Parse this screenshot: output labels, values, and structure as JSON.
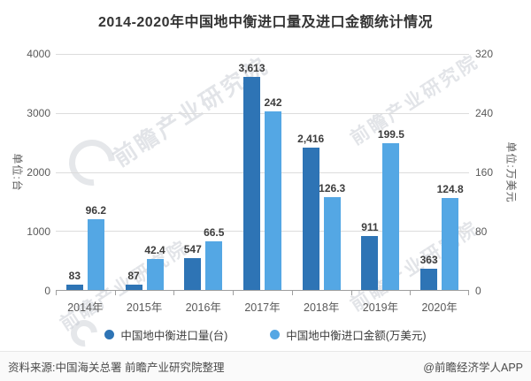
{
  "title": "2014-2020年中国地中衡进口量及进口金额统计情况",
  "watermark_text": "前瞻产业研究院",
  "chart_data": {
    "type": "bar",
    "categories": [
      "2014年",
      "2015年",
      "2016年",
      "2017年",
      "2018年",
      "2019年",
      "2020年"
    ],
    "series": [
      {
        "name": "中国地中衡进口量(台)",
        "axis": "left",
        "color": "#2e74b5",
        "values": [
          83,
          87,
          547,
          3613,
          2416,
          911,
          363
        ],
        "labels": [
          "83",
          "87",
          "547",
          "3,613",
          "2,416",
          "911",
          "363"
        ]
      },
      {
        "name": "中国地中衡进口金额(万美元)",
        "axis": "right",
        "color": "#54a7e4",
        "values": [
          96.2,
          42.4,
          66.5,
          242,
          126.3,
          199.5,
          124.8
        ],
        "labels": [
          "96.2",
          "42.4",
          "66.5",
          "242",
          "126.3",
          "199.5",
          "124.8"
        ]
      }
    ],
    "left_axis": {
      "title": "单位:台",
      "ticks": [
        "4000",
        "3000",
        "2000",
        "1000",
        "0"
      ],
      "max": 4000
    },
    "right_axis": {
      "title": "单位:万美元",
      "ticks": [
        "320",
        "240",
        "160",
        "80",
        "0"
      ],
      "max": 320
    },
    "grid": true,
    "legend_position": "bottom"
  },
  "footer": {
    "source": "资料来源:中国海关总署 前瞻产业研究院整理",
    "credit": "@前瞻经济学人APP"
  }
}
